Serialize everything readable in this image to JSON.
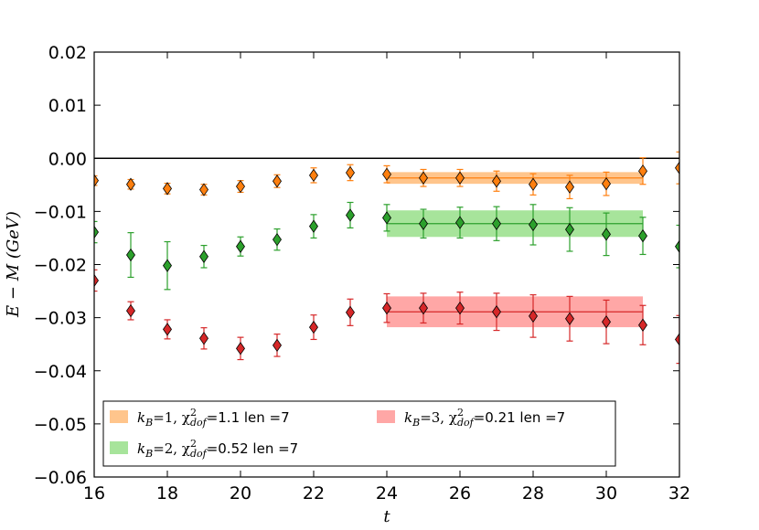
{
  "chart_data": {
    "type": "scatter",
    "title": "",
    "xlabel": "t",
    "ylabel": "E − M (GeV)",
    "xlim": [
      16,
      32
    ],
    "ylim": [
      -0.06,
      0.02
    ],
    "xticks": [
      16,
      18,
      20,
      22,
      24,
      26,
      28,
      30,
      32
    ],
    "yticks": [
      0.02,
      0.01,
      0.0,
      -0.01,
      -0.02,
      -0.03,
      -0.04,
      -0.05,
      -0.06
    ],
    "ytick_labels": [
      "0.02",
      "0.01",
      "0.00",
      "−0.01",
      "−0.02",
      "−0.03",
      "−0.04",
      "−0.05",
      "−0.06"
    ],
    "reference_line": 0.0,
    "legend_placement": "lower-center",
    "series": [
      {
        "name": "k_B=1",
        "color": "#ff7f0e",
        "band_color": "#ffbb78",
        "legend": {
          "prefix": "k",
          "sub": "B",
          "mid": "=1, χ",
          "sup": "2",
          "sub2": "dof",
          "suffix": "=1.1 len =7"
        },
        "fit": {
          "value": -0.0037,
          "error": 0.0011,
          "t_range": [
            24,
            31
          ]
        },
        "points": [
          {
            "t": 16,
            "y": -0.0042,
            "err": 0.0009
          },
          {
            "t": 17,
            "y": -0.0049,
            "err": 0.0009
          },
          {
            "t": 18,
            "y": -0.0057,
            "err": 0.001
          },
          {
            "t": 19,
            "y": -0.0059,
            "err": 0.001
          },
          {
            "t": 20,
            "y": -0.0053,
            "err": 0.0011
          },
          {
            "t": 21,
            "y": -0.0043,
            "err": 0.0012
          },
          {
            "t": 22,
            "y": -0.0032,
            "err": 0.0014
          },
          {
            "t": 23,
            "y": -0.0027,
            "err": 0.0015
          },
          {
            "t": 24,
            "y": -0.003,
            "err": 0.0016
          },
          {
            "t": 25,
            "y": -0.0037,
            "err": 0.0016
          },
          {
            "t": 26,
            "y": -0.0037,
            "err": 0.0016
          },
          {
            "t": 27,
            "y": -0.0043,
            "err": 0.0019
          },
          {
            "t": 28,
            "y": -0.0049,
            "err": 0.002
          },
          {
            "t": 29,
            "y": -0.0054,
            "err": 0.0022
          },
          {
            "t": 30,
            "y": -0.0048,
            "err": 0.0022
          },
          {
            "t": 31,
            "y": -0.0024,
            "err": 0.0025
          },
          {
            "t": 32,
            "y": -0.0018,
            "err": 0.003
          }
        ]
      },
      {
        "name": "k_B=2",
        "color": "#2ca02c",
        "band_color": "#98df8a",
        "legend": {
          "prefix": "k",
          "sub": "B",
          "mid": "=2, χ",
          "sup": "2",
          "sub2": "dof",
          "suffix": "=0.52 len =7"
        },
        "fit": {
          "value": -0.0123,
          "error": 0.0025,
          "t_range": [
            24,
            31
          ]
        },
        "points": [
          {
            "t": 16,
            "y": -0.0139,
            "err": 0.002
          },
          {
            "t": 17,
            "y": -0.0182,
            "err": 0.0042
          },
          {
            "t": 18,
            "y": -0.0202,
            "err": 0.0045
          },
          {
            "t": 19,
            "y": -0.0185,
            "err": 0.0021
          },
          {
            "t": 20,
            "y": -0.0166,
            "err": 0.0018
          },
          {
            "t": 21,
            "y": -0.0153,
            "err": 0.002
          },
          {
            "t": 22,
            "y": -0.0128,
            "err": 0.0022
          },
          {
            "t": 23,
            "y": -0.0107,
            "err": 0.0024
          },
          {
            "t": 24,
            "y": -0.0112,
            "err": 0.0025
          },
          {
            "t": 25,
            "y": -0.0123,
            "err": 0.0027
          },
          {
            "t": 26,
            "y": -0.0121,
            "err": 0.0029
          },
          {
            "t": 27,
            "y": -0.0123,
            "err": 0.0032
          },
          {
            "t": 28,
            "y": -0.0125,
            "err": 0.0038
          },
          {
            "t": 29,
            "y": -0.0134,
            "err": 0.0041
          },
          {
            "t": 30,
            "y": -0.0143,
            "err": 0.004
          },
          {
            "t": 31,
            "y": -0.0146,
            "err": 0.0035
          },
          {
            "t": 32,
            "y": -0.0166,
            "err": 0.004
          }
        ]
      },
      {
        "name": "k_B=3",
        "color": "#d62728",
        "band_color": "#ff9896",
        "legend": {
          "prefix": "k",
          "sub": "B",
          "mid": "=3, χ",
          "sup": "2",
          "sub2": "dof",
          "suffix": "=0.21 len =7"
        },
        "fit": {
          "value": -0.0289,
          "error": 0.0029,
          "t_range": [
            24,
            31
          ]
        },
        "points": [
          {
            "t": 16,
            "y": -0.023,
            "err": 0.002
          },
          {
            "t": 17,
            "y": -0.0287,
            "err": 0.0017
          },
          {
            "t": 18,
            "y": -0.0322,
            "err": 0.0018
          },
          {
            "t": 19,
            "y": -0.0339,
            "err": 0.002
          },
          {
            "t": 20,
            "y": -0.0358,
            "err": 0.0021
          },
          {
            "t": 21,
            "y": -0.0352,
            "err": 0.0021
          },
          {
            "t": 22,
            "y": -0.0318,
            "err": 0.0023
          },
          {
            "t": 23,
            "y": -0.029,
            "err": 0.0025
          },
          {
            "t": 24,
            "y": -0.0282,
            "err": 0.0027
          },
          {
            "t": 25,
            "y": -0.0282,
            "err": 0.0028
          },
          {
            "t": 26,
            "y": -0.0282,
            "err": 0.003
          },
          {
            "t": 27,
            "y": -0.0289,
            "err": 0.0035
          },
          {
            "t": 28,
            "y": -0.0297,
            "err": 0.004
          },
          {
            "t": 29,
            "y": -0.0302,
            "err": 0.0042
          },
          {
            "t": 30,
            "y": -0.0308,
            "err": 0.0041
          },
          {
            "t": 31,
            "y": -0.0314,
            "err": 0.0037
          },
          {
            "t": 32,
            "y": -0.0341,
            "err": 0.0045
          }
        ]
      }
    ]
  }
}
